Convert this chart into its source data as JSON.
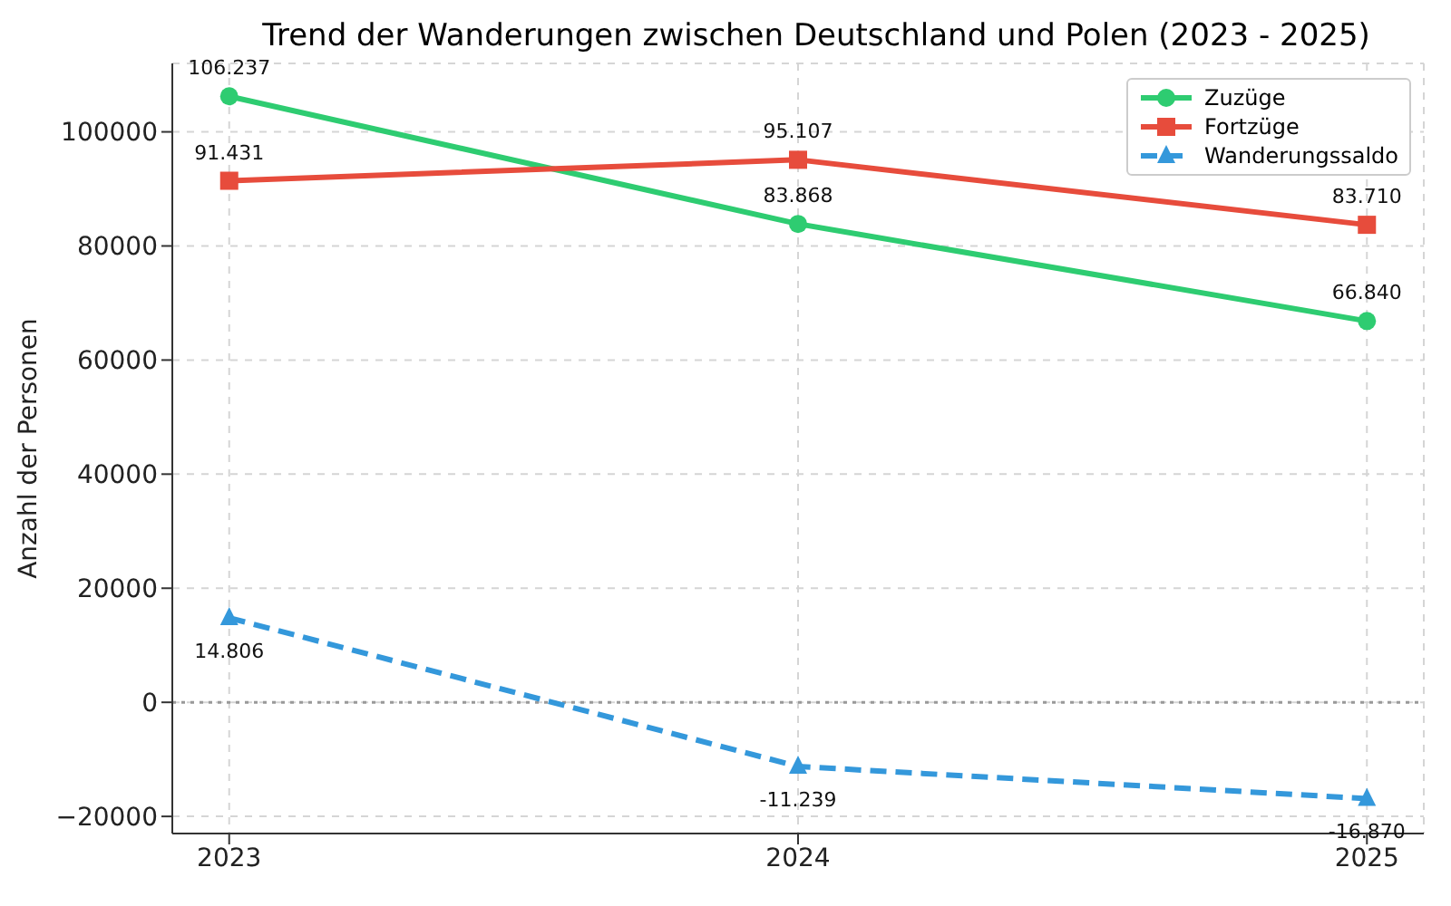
{
  "chart_data": {
    "type": "line",
    "title": "Trend der Wanderungen zwischen Deutschland und Polen (2023 - 2025)",
    "ylabel": "Anzahl der Personen",
    "categories": [
      "2023",
      "2024",
      "2025"
    ],
    "series": [
      {
        "name": "Zuzüge",
        "color": "#2ecc71",
        "values": [
          106237,
          83868,
          66840
        ],
        "value_labels": [
          "106.237",
          "83.868",
          "66.840"
        ],
        "marker": "circle",
        "line_style": "solid"
      },
      {
        "name": "Fortzüge",
        "color": "#e74c3c",
        "values": [
          91431,
          95107,
          83710
        ],
        "value_labels": [
          "91.431",
          "95.107",
          "83.710"
        ],
        "marker": "square",
        "line_style": "solid"
      },
      {
        "name": "Wanderungssaldo",
        "color": "#3498db",
        "values": [
          14806,
          -11239,
          -16870
        ],
        "value_labels": [
          "14.806",
          "-11.239",
          "-16.870"
        ],
        "marker": "triangle",
        "line_style": "dashed"
      }
    ],
    "ylim": [
      -23000,
      112000
    ],
    "yticks": [
      {
        "value": -20000,
        "label": "−20000"
      },
      0,
      20000,
      40000,
      60000,
      80000,
      100000
    ],
    "ref_lines": [
      {
        "axis": "y",
        "value": 0,
        "color": "#999999",
        "line_style": "dotted"
      }
    ],
    "grid": true,
    "legend": "top right"
  }
}
